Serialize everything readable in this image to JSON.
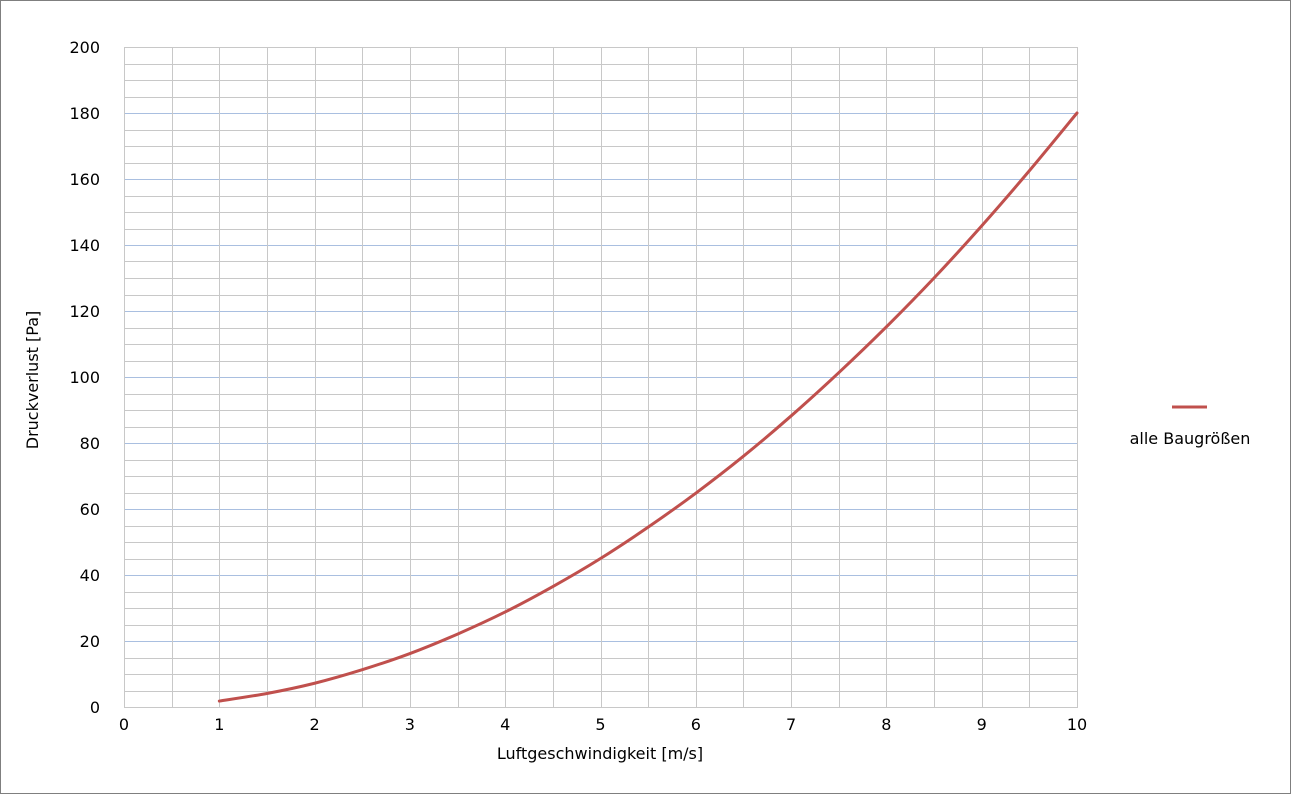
{
  "chart_data": {
    "type": "line",
    "title": "",
    "xlabel": "Luftgeschwindigkeit [m/s]",
    "ylabel": "Druckverlust [Pa]",
    "xlim": [
      0,
      10
    ],
    "ylim": [
      0,
      200
    ],
    "x_ticks": [
      "0",
      "1",
      "2",
      "3",
      "4",
      "5",
      "6",
      "7",
      "8",
      "9",
      "10"
    ],
    "y_ticks": [
      "0",
      "20",
      "40",
      "60",
      "80",
      "100",
      "120",
      "140",
      "160",
      "180",
      "200"
    ],
    "x_minor_step": 0.5,
    "y_minor_step": 5,
    "grid": true,
    "legend_position": "right",
    "colors": {
      "series": "#c0504d",
      "grid": "#c8c8c8",
      "grid_major": "#a9bfe0",
      "frame": "#7f7f7f"
    },
    "series": [
      {
        "name": "alle Baugrößen",
        "x": [
          1,
          1.5,
          2,
          2.5,
          3,
          3.5,
          4,
          4.5,
          5,
          5.5,
          6,
          6.5,
          7,
          7.5,
          8,
          8.5,
          9,
          9.5,
          10
        ],
        "y": [
          1.8,
          4.1,
          7.2,
          11.3,
          16.2,
          22.1,
          28.8,
          36.5,
          45,
          54.5,
          64.8,
          76,
          88.2,
          101.3,
          115.2,
          130,
          145.8,
          162.5,
          180
        ]
      }
    ]
  }
}
